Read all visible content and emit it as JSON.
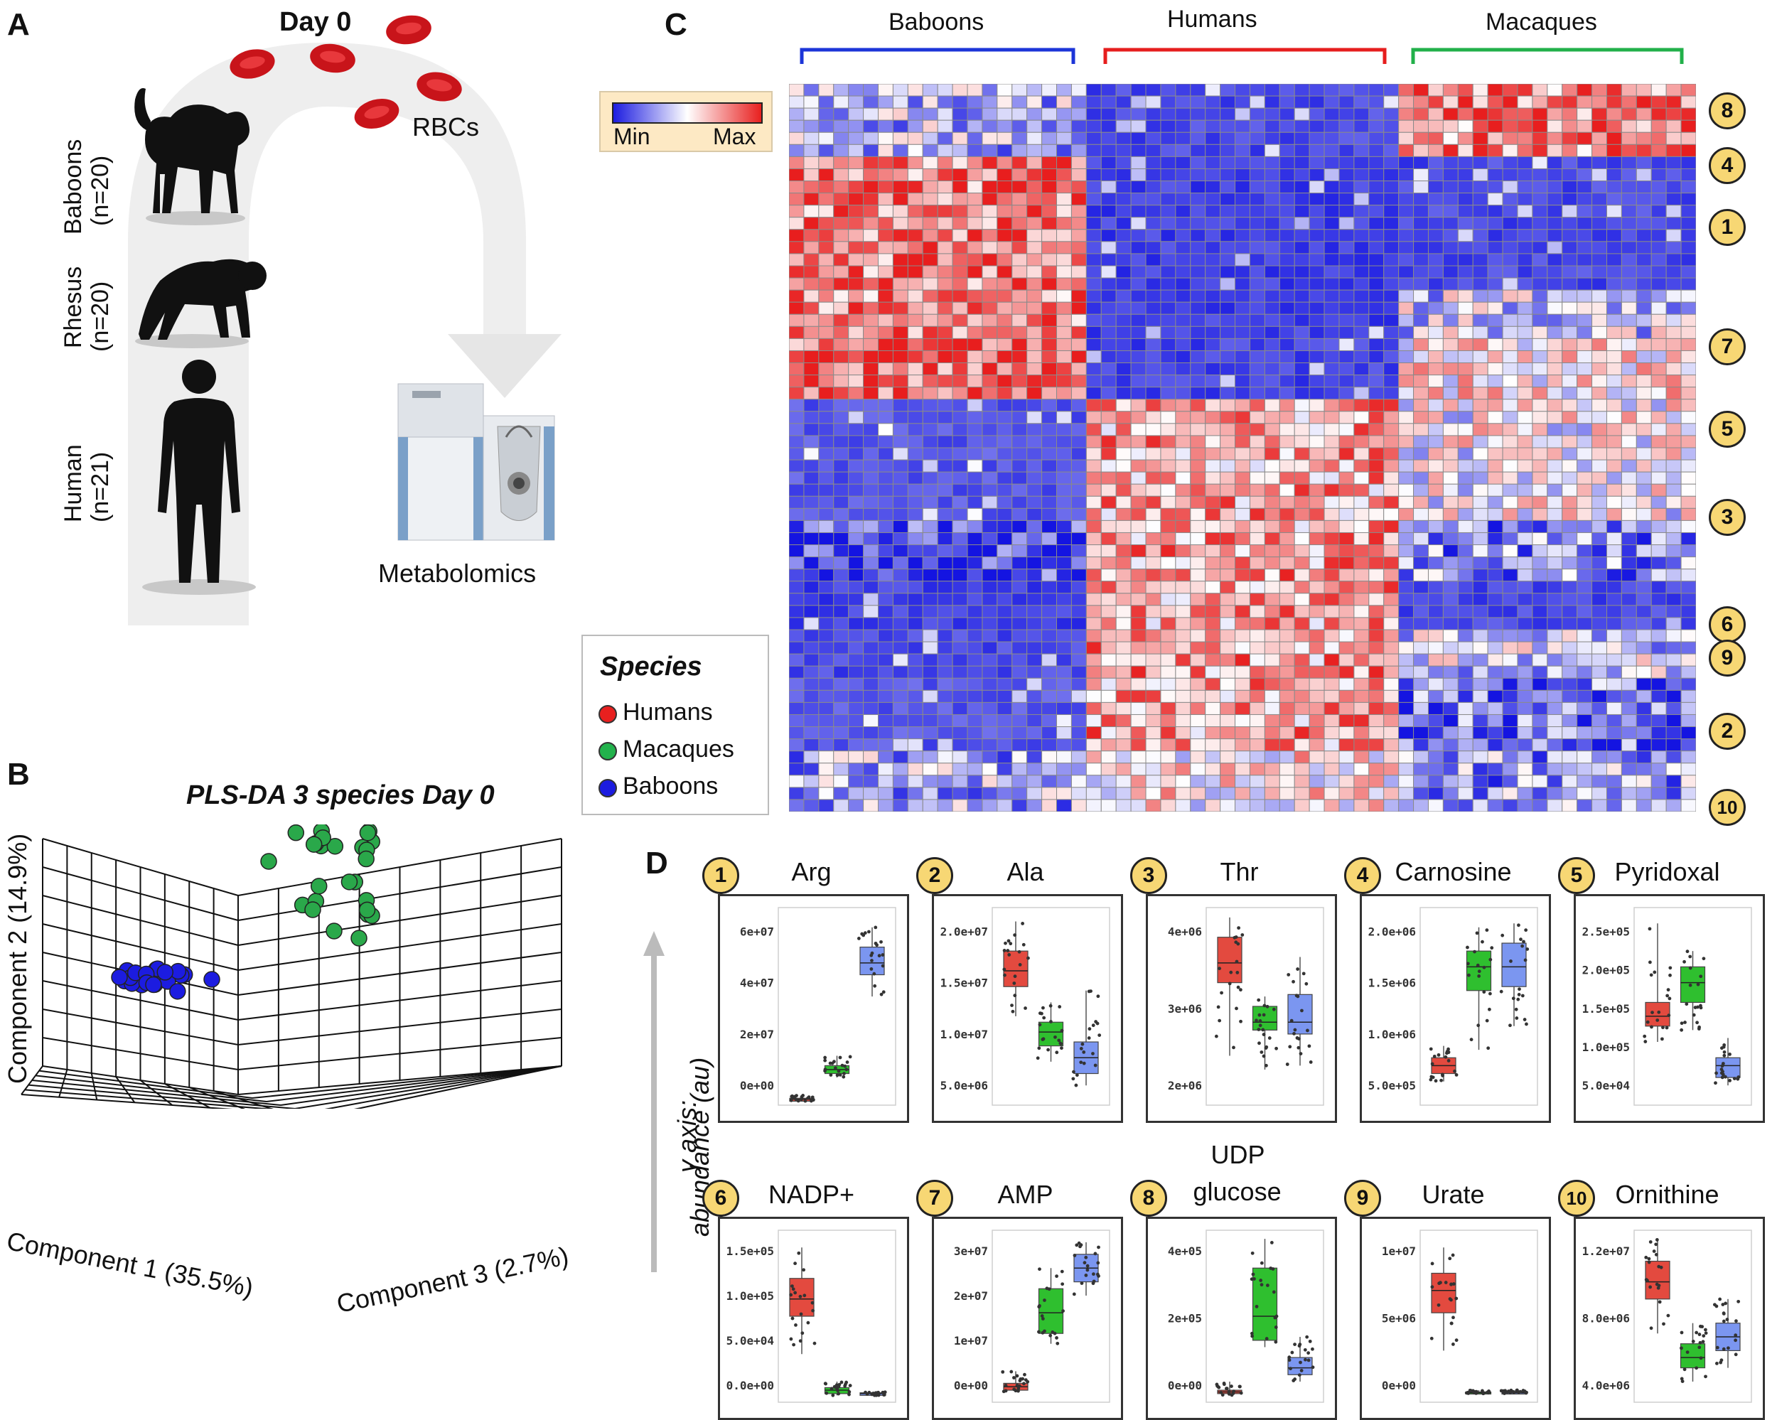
{
  "panels": {
    "a": "A",
    "b": "B",
    "c": "C",
    "d": "D"
  },
  "panel_a": {
    "day_label": "Day 0",
    "rbc_label": "RBCs",
    "metabolomics_label": "Metabolomics",
    "groups": [
      {
        "name": "Baboons",
        "n": "(n=20)"
      },
      {
        "name": "Rhesus",
        "n": "(n=20)"
      },
      {
        "name": "Human",
        "n": "(n=21)"
      }
    ]
  },
  "panel_b": {
    "title": "PLS-DA 3 species Day 0",
    "xlabel": "Component 1 (35.5%)",
    "zlabel": "Component 3 (2.7%)",
    "ylabel": "Component 2 (14.9%)"
  },
  "panel_c": {
    "groups": [
      "Baboons",
      "Humans",
      "Macaques"
    ],
    "scale_min": "Min",
    "scale_max": "Max",
    "cluster_badges": [
      "8",
      "4",
      "1",
      "7",
      "5",
      "3",
      "6",
      "9",
      "2",
      "10"
    ],
    "legend_title": "Species",
    "legend_items": [
      {
        "label": "Humans",
        "color": "#e8201f"
      },
      {
        "label": "Macaques",
        "color": "#22b24c"
      },
      {
        "label": "Baboons",
        "color": "#1c1ce0"
      }
    ]
  },
  "panel_d": {
    "y_axis_line1": "y axis:",
    "y_axis_line2": "abundance (au)",
    "boxes": [
      {
        "num": "1",
        "title": "Arg",
        "ticks": [
          "6e+07",
          "4e+07",
          "2e+07",
          "0e+00"
        ]
      },
      {
        "num": "2",
        "title": "Ala",
        "ticks": [
          "2.0e+07",
          "1.5e+07",
          "1.0e+07",
          "5.0e+06"
        ]
      },
      {
        "num": "3",
        "title": "Thr",
        "ticks": [
          "4e+06",
          "3e+06",
          "2e+06"
        ]
      },
      {
        "num": "4",
        "title": "Carnosine",
        "ticks": [
          "2.0e+06",
          "1.5e+06",
          "1.0e+06",
          "5.0e+05"
        ]
      },
      {
        "num": "5",
        "title": "Pyridoxal",
        "ticks": [
          "2.5e+05",
          "2.0e+05",
          "1.5e+05",
          "1.0e+05",
          "5.0e+04"
        ]
      },
      {
        "num": "6",
        "title": "NADP+",
        "ticks": [
          "1.5e+05",
          "1.0e+05",
          "5.0e+04",
          "0.0e+00"
        ]
      },
      {
        "num": "7",
        "title": "AMP",
        "ticks": [
          "3e+07",
          "2e+07",
          "1e+07",
          "0e+00"
        ]
      },
      {
        "num": "8",
        "title": "UDP\nglucose",
        "title_line1": "UDP",
        "title_line2": "glucose",
        "ticks": [
          "4e+05",
          "2e+05",
          "0e+00"
        ]
      },
      {
        "num": "9",
        "title": "Urate",
        "ticks": [
          "1e+07",
          "5e+06",
          "0e+00"
        ]
      },
      {
        "num": "10",
        "title": "Ornithine",
        "ticks": [
          "1.2e+07",
          "8.0e+06",
          "4.0e+06"
        ]
      }
    ]
  },
  "colors": {
    "human": "#e8201f",
    "macaque": "#22b24c",
    "baboon": "#1c1ce0",
    "box_human": "#e34a3f",
    "box_macaque": "#2fbf2f",
    "box_baboon": "#7b96f0",
    "badge": "#f7d774"
  }
}
